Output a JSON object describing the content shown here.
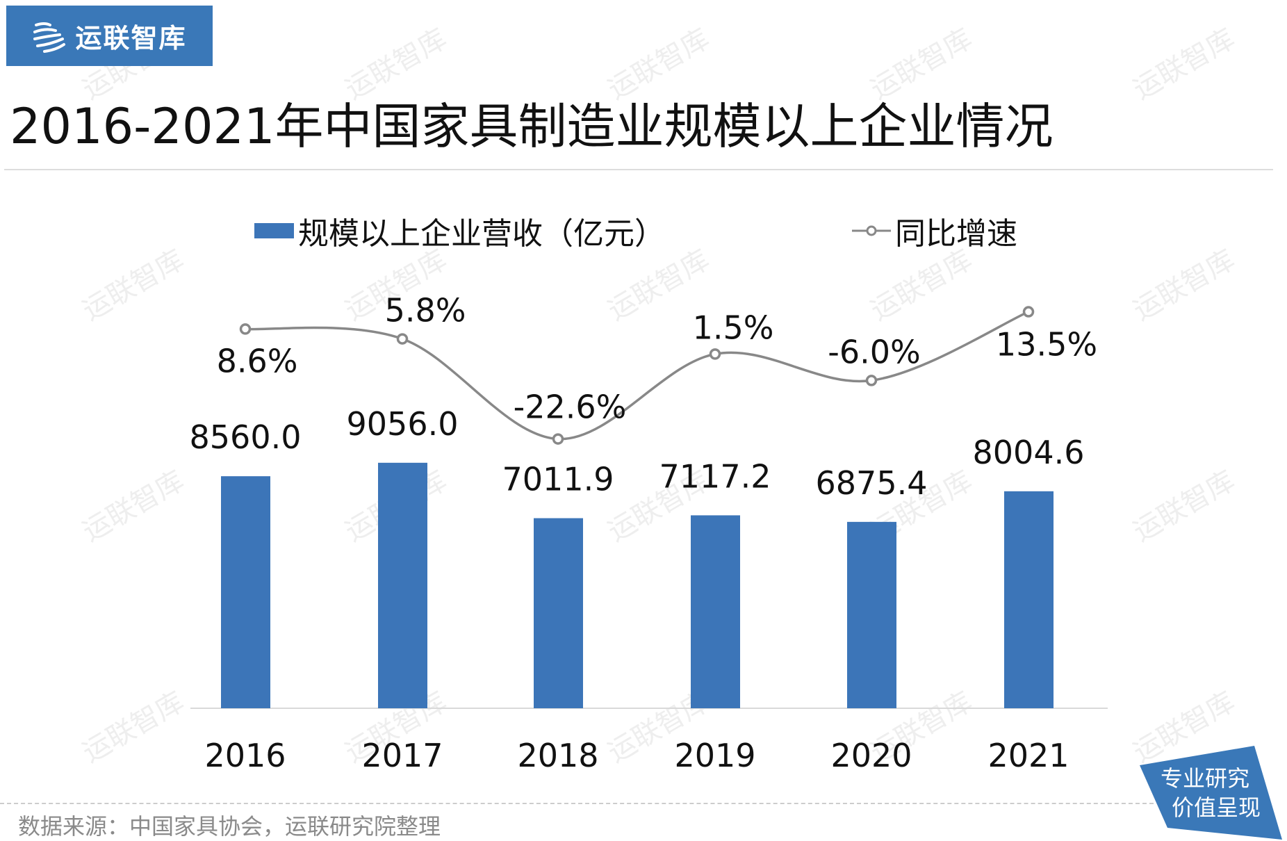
{
  "header": {
    "logo_text": "运联智库",
    "title": "2016-2021年中国家具制造业规模以上企业情况"
  },
  "watermark": "运联智库",
  "chart_data": {
    "type": "bar",
    "title": "2016-2021年中国家具制造业规模以上企业情况",
    "categories": [
      "2016",
      "2017",
      "2018",
      "2019",
      "2020",
      "2021"
    ],
    "series": [
      {
        "name": "规模以上企业营收（亿元）",
        "type": "bar",
        "values": [
          8560.0,
          9056.0,
          7011.9,
          7117.2,
          6875.4,
          8004.6
        ],
        "labels": [
          "8560.0",
          "9056.0",
          "7011.9",
          "7117.2",
          "6875.4",
          "8004.6"
        ],
        "color": "#3c75b8"
      },
      {
        "name": "同比增速",
        "type": "line",
        "values": [
          8.6,
          5.8,
          -22.6,
          1.5,
          -6.0,
          13.5
        ],
        "labels": [
          "8.6%",
          "5.8%",
          "-22.6%",
          "1.5%",
          "-6.0%",
          "13.5%"
        ],
        "color": "#888888",
        "smooth": true,
        "marker": "hollow-circle"
      }
    ],
    "legend_position": "top",
    "grid": false,
    "y_axis_visible": false
  },
  "footer": {
    "source": "数据来源：中国家具协会，运联研究院整理",
    "badge_line1": "专业研究",
    "badge_line2": "价值呈现"
  }
}
